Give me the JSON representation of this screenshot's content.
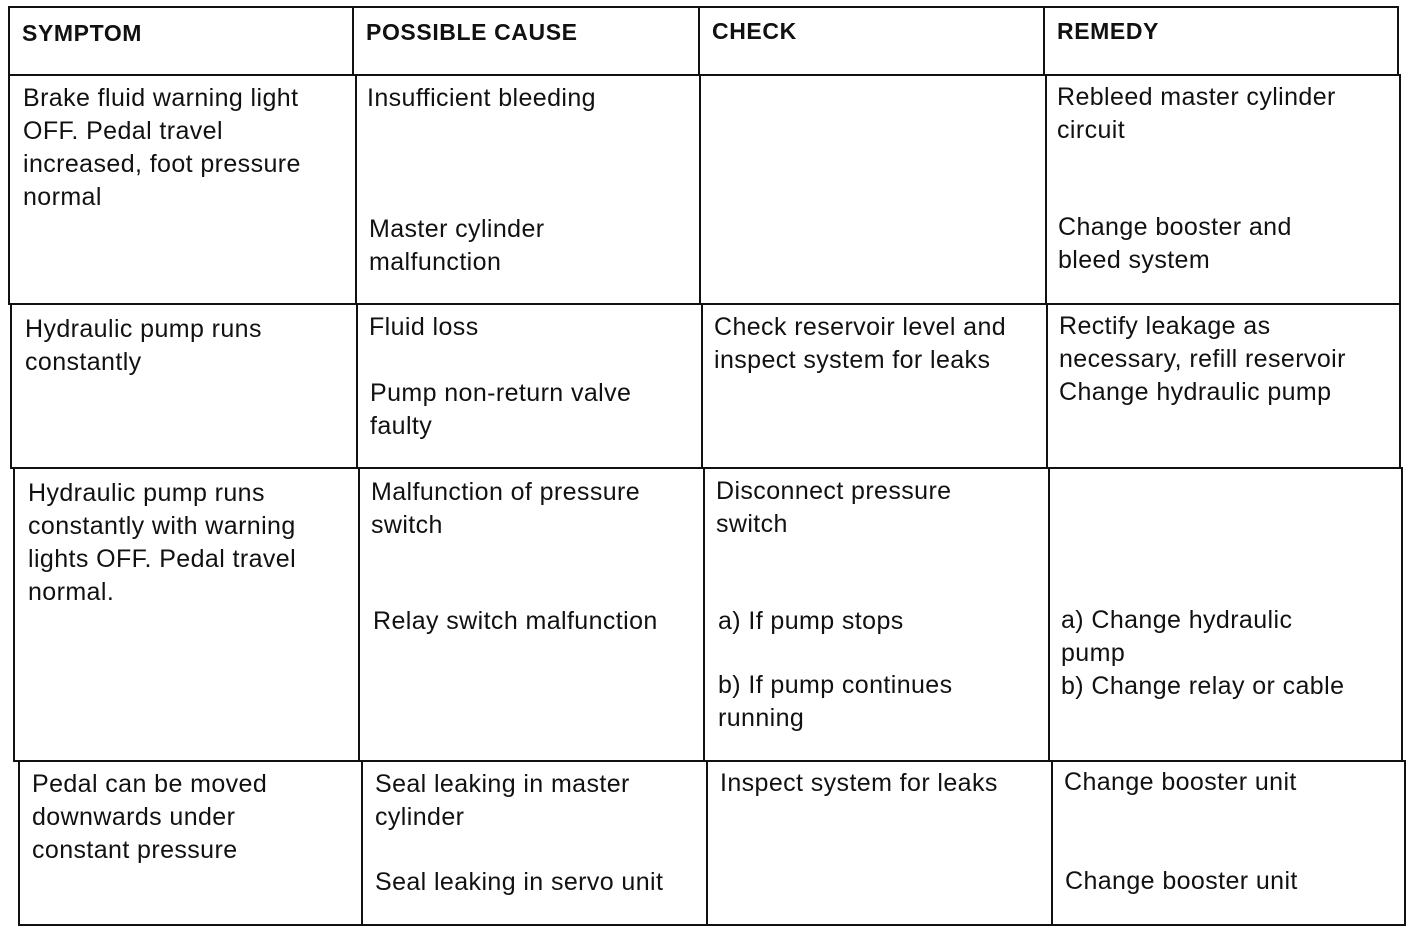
{
  "headers": [
    "SYMPTOM",
    "POSSIBLE CAUSE",
    "CHECK",
    "REMEDY"
  ],
  "rows": [
    {
      "symptom": "Brake fluid warning light\nOFF. Pedal travel\nincreased, foot pressure\nnormal",
      "cause": [
        "Insufficient bleeding",
        "Master cylinder\nmalfunction"
      ],
      "check": [],
      "remedy": [
        "Rebleed master cylinder\ncircuit",
        "Change booster and\nbleed system"
      ]
    },
    {
      "symptom": "Hydraulic pump runs\nconstantly",
      "cause": [
        "Fluid loss",
        "Pump non-return valve\nfaulty"
      ],
      "check": [
        "Check reservoir level and\ninspect system for leaks"
      ],
      "remedy": [
        "Rectify leakage as\nnecessary, refill reservoir\nChange hydraulic pump"
      ]
    },
    {
      "symptom": "Hydraulic pump runs\nconstantly with warning\nlights OFF. Pedal travel\nnormal.",
      "cause": [
        "Malfunction of pressure\nswitch",
        "Relay switch malfunction"
      ],
      "check": [
        "Disconnect pressure\nswitch",
        "a) If pump stops",
        "b) If pump continues\nrunning"
      ],
      "remedy": [
        "a) Change hydraulic\npump\nb) Change relay or cable"
      ]
    },
    {
      "symptom": "Pedal can be moved\ndownwards under\nconstant pressure",
      "cause": [
        "Seal leaking in master\ncylinder",
        "Seal leaking in servo unit"
      ],
      "check": [
        "Inspect system for leaks"
      ],
      "remedy": [
        "Change booster unit",
        "Change booster unit"
      ]
    }
  ]
}
